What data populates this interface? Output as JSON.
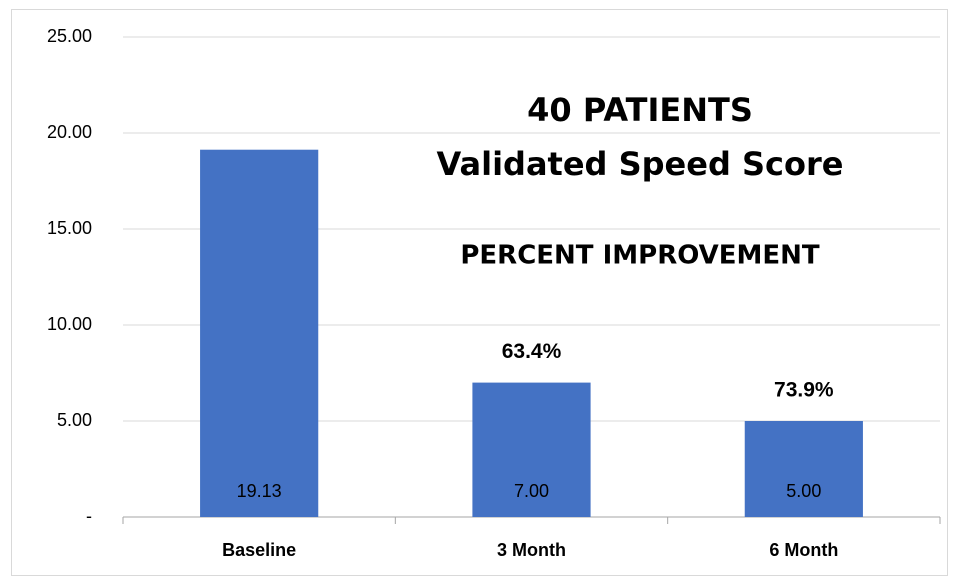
{
  "chart_data": {
    "type": "bar",
    "annotations": [
      "40 PATIENTS",
      "Validated Speed Score",
      "PERCENT IMPROVEMENT"
    ],
    "categories": [
      "Baseline",
      "3 Month",
      "6 Month"
    ],
    "values": [
      19.13,
      7.0,
      5.0
    ],
    "value_labels": [
      "19.13",
      "7.00",
      "5.00"
    ],
    "improvement_labels": [
      null,
      "63.4%",
      "73.9%"
    ],
    "color": "#4472c4",
    "ylim": [
      0,
      25
    ],
    "yticks": [
      {
        "value": 0,
        "label": "-"
      },
      {
        "value": 5,
        "label": "5.00"
      },
      {
        "value": 10,
        "label": "10.00"
      },
      {
        "value": 15,
        "label": "15.00"
      },
      {
        "value": 20,
        "label": "20.00"
      },
      {
        "value": 25,
        "label": "25.00"
      }
    ],
    "grid": true
  }
}
